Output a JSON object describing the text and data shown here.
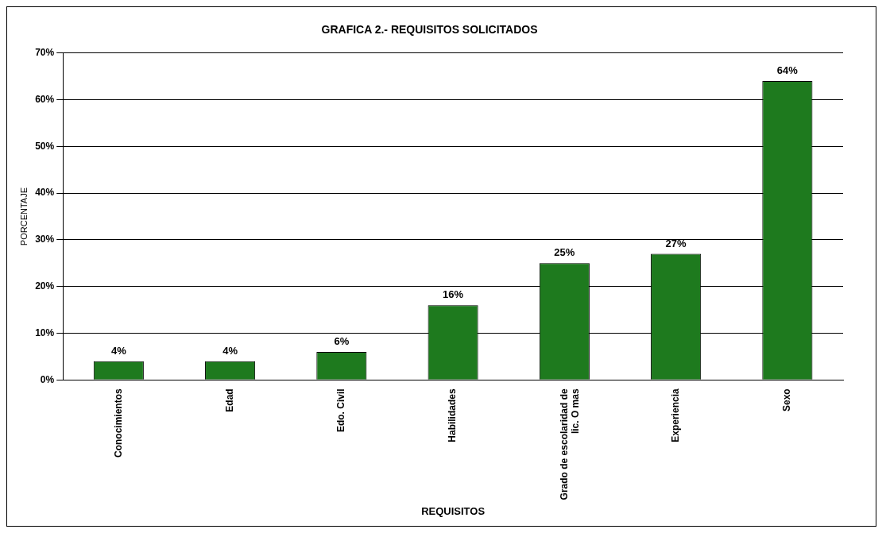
{
  "chart_data": {
    "type": "bar",
    "title": "GRAFICA 2.- REQUISITOS SOLICITADOS",
    "xlabel": "REQUISITOS",
    "ylabel": "PORCENTAJE",
    "categories": [
      "Conocimientos",
      "Edad",
      "Edo. Civil",
      "Habilidades",
      [
        "Grado de escolaridad de",
        "lic. O mas"
      ],
      "Experiencia",
      "Sexo"
    ],
    "values": [
      4,
      4,
      6,
      16,
      25,
      27,
      64
    ],
    "value_labels": [
      "4%",
      "4%",
      "6%",
      "16%",
      "25%",
      "27%",
      "64%"
    ],
    "color": "#1e7a1e",
    "ylim": [
      0,
      70
    ],
    "yticks": [
      {
        "value": 0,
        "label": "0%"
      },
      {
        "value": 10,
        "label": "10%"
      },
      {
        "value": 20,
        "label": "20%"
      },
      {
        "value": 30,
        "label": "30%"
      },
      {
        "value": 40,
        "label": "40%"
      },
      {
        "value": 50,
        "label": "50%"
      },
      {
        "value": 60,
        "label": "60%"
      },
      {
        "value": 70,
        "label": "70%"
      }
    ],
    "grid": "y",
    "legend": false
  }
}
